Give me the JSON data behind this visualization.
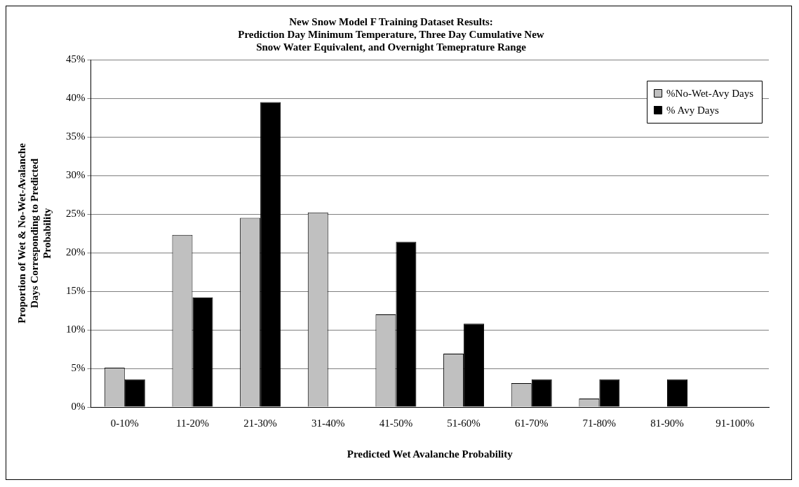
{
  "chart_data": {
    "type": "bar",
    "title": "New Snow Model F Training Dataset Results:\nPrediction Day Minimum Temperature, Three Day Cumulative New\nSnow Water Equivalent, and Overnight Temeprature Range",
    "xlabel": "Predicted Wet Avalanche Probability",
    "ylabel": "Proportion of Wet & No-Wet-Avalanche\nDays Corresponding to Predicted\nProbability",
    "categories": [
      "0-10%",
      "11-20%",
      "21-30%",
      "31-40%",
      "41-50%",
      "51-60%",
      "61-70%",
      "71-80%",
      "81-90%",
      "91-100%"
    ],
    "series": [
      {
        "name": "%No-Wet-Avy Days",
        "color": "#c0c0c0",
        "values": [
          5.1,
          22.3,
          24.5,
          25.2,
          12.0,
          6.9,
          3.1,
          1.1,
          0,
          0
        ]
      },
      {
        "name": "% Avy Days",
        "color": "#000000",
        "values": [
          3.6,
          14.2,
          39.5,
          0,
          21.4,
          10.8,
          3.6,
          3.6,
          3.6,
          0
        ]
      }
    ],
    "ylim": [
      0,
      45
    ],
    "yticks": [
      {
        "value": 0,
        "label": "0%"
      },
      {
        "value": 5,
        "label": "5%"
      },
      {
        "value": 10,
        "label": "10%"
      },
      {
        "value": 15,
        "label": "15%"
      },
      {
        "value": 20,
        "label": "20%"
      },
      {
        "value": 25,
        "label": "25%"
      },
      {
        "value": 30,
        "label": "30%"
      },
      {
        "value": 35,
        "label": "35%"
      },
      {
        "value": 40,
        "label": "40%"
      },
      {
        "value": 45,
        "label": "45%"
      }
    ],
    "grid": "y",
    "legend": "top right"
  }
}
